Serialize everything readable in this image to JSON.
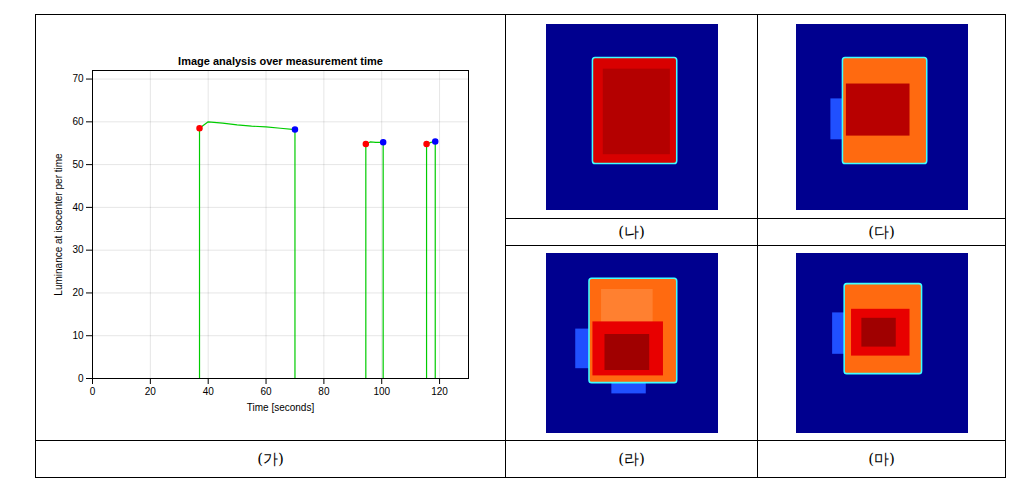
{
  "chart_data": {
    "type": "line",
    "title": "Image analysis over measurement time",
    "x_label": "Time [seconds]",
    "y_label": "Luminance at isocenter per time",
    "x": [
      0,
      37,
      37,
      40,
      45,
      50,
      55,
      60,
      65,
      70,
      70,
      94.5,
      94.5,
      96,
      98,
      100.5,
      100.5,
      115.5,
      115.5,
      117,
      118.5,
      118.5,
      130
    ],
    "series": [
      {
        "type": "line",
        "color": "#00cc00",
        "line_style": "solid",
        "values": [
          0,
          0,
          58.5,
          60,
          59.7,
          59.3,
          59,
          58.8,
          58.5,
          58.2,
          0,
          0,
          54.8,
          55.3,
          55.2,
          55.2,
          0,
          0,
          54.8,
          55.2,
          55.4,
          0,
          0
        ]
      },
      {
        "type": "scatter",
        "color": "#ff0000",
        "marker": "circle",
        "values": [
          null,
          null,
          58.5,
          null,
          null,
          null,
          null,
          null,
          null,
          null,
          null,
          null,
          54.8,
          null,
          null,
          null,
          null,
          null,
          54.8,
          null,
          null,
          null,
          null
        ]
      },
      {
        "type": "scatter",
        "color": "#0000ff",
        "marker": "circle",
        "values": [
          null,
          null,
          null,
          null,
          null,
          null,
          null,
          null,
          null,
          58.2,
          null,
          null,
          null,
          null,
          null,
          55.2,
          null,
          null,
          null,
          null,
          55.4,
          null,
          null
        ]
      }
    ],
    "xlim": [
      0,
      130
    ],
    "xticks": [
      0,
      20,
      40,
      60,
      80,
      100,
      120
    ],
    "ylim": [
      0,
      72
    ],
    "yticks": [
      0,
      10,
      20,
      30,
      40,
      50,
      60,
      70
    ],
    "grid": true
  },
  "panel_labels": [
    "(가)",
    "(나)",
    "(다)",
    "(라)",
    "(마)"
  ]
}
